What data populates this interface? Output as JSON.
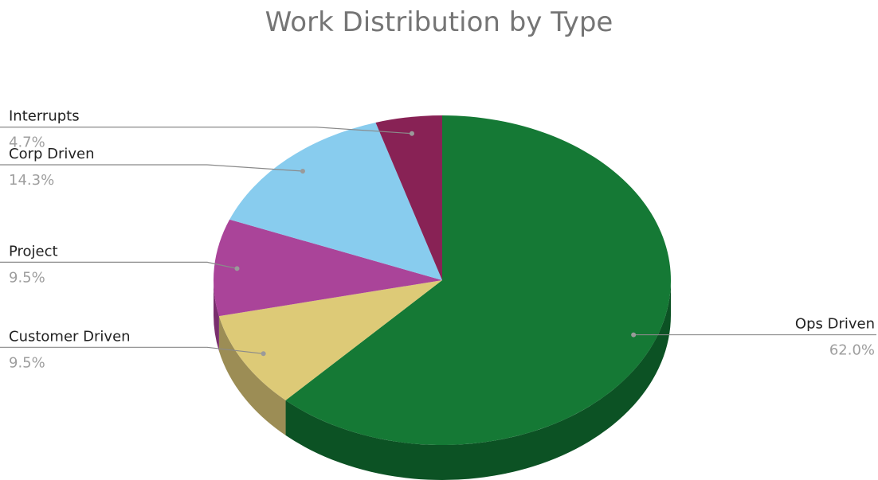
{
  "chart_data": {
    "type": "pie",
    "title": "Work Distribution by Type",
    "categories": [
      "Ops Driven",
      "Customer Driven",
      "Project",
      "Corp Driven",
      "Interrupts"
    ],
    "values": [
      62.0,
      9.5,
      9.5,
      14.3,
      4.7
    ],
    "labels": [
      "62.0%",
      "9.5%",
      "9.5%",
      "14.3%",
      "4.7%"
    ],
    "colors": [
      "#157935",
      "#ddca77",
      "#aa4499",
      "#88ccee",
      "#882255"
    ],
    "side_colors": [
      "#0c5224",
      "#9c8d55",
      "#7a2f6d",
      "#5f8fa8",
      "#5e1740"
    ],
    "label_sides": [
      "right",
      "left",
      "left",
      "left",
      "left"
    ],
    "style": "3d"
  }
}
